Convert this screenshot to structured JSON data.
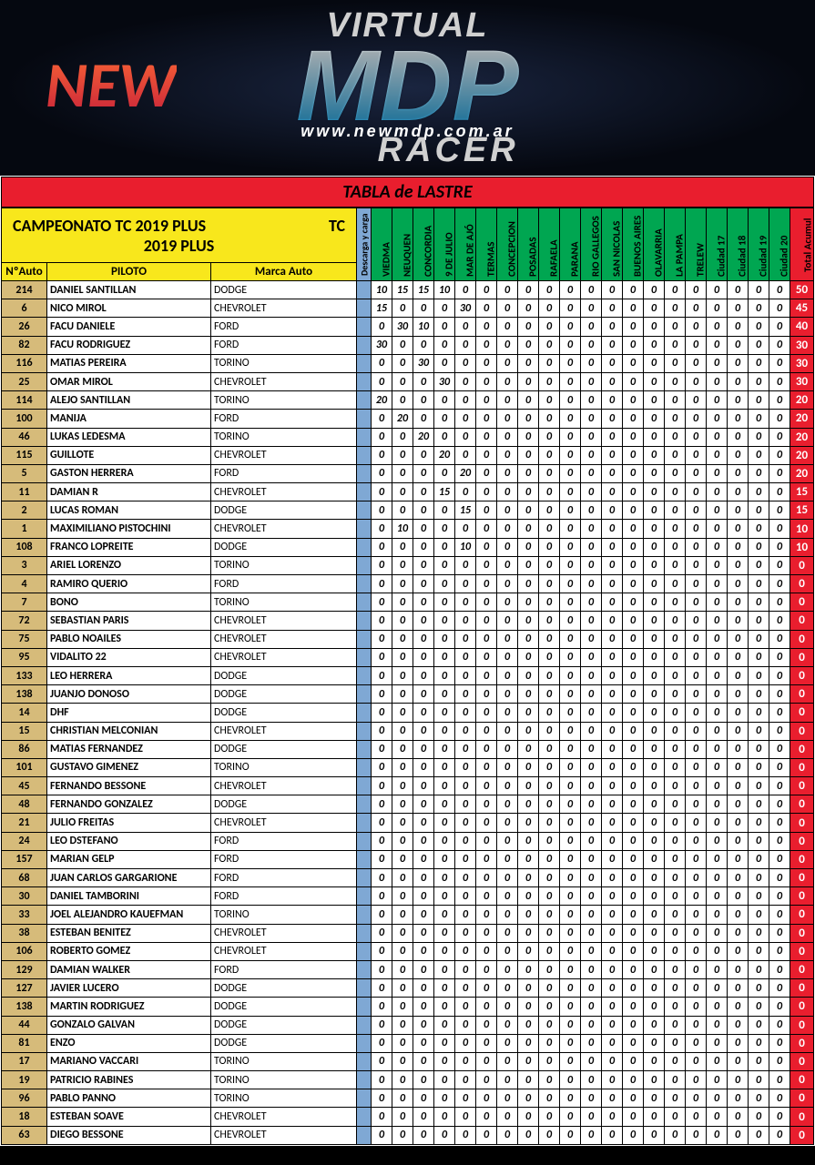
{
  "banner": {
    "top": "VIRTUAL",
    "new": "NEW",
    "mid": "MDP",
    "url": "www.newmdp.com.ar",
    "bot": "RACER"
  },
  "title": "TABLA de LASTRE",
  "championship_line1": "CAMPEONATO TC 2019 PLUS",
  "championship_right": "TC",
  "championship_line2": "2019 PLUS",
  "headers": {
    "num": "NºAuto",
    "pilot": "PILOTO",
    "brand": "Marca Auto",
    "descarga": "Descarga y carga",
    "total": "Total Acumul"
  },
  "tracks": [
    "VIEDMA",
    "NEUQUEN",
    "CONCORDIA",
    "9 DE JULIO",
    "MAR DE AJÓ",
    "TERMAS",
    "CONCEPCION",
    "POSADAS",
    "RAFAELA",
    "PARANA",
    "RIO GALLEGOS",
    "SAN NICOLAS",
    "BUENOS AIRES",
    "OLAVARRIA",
    "LA PAMPA",
    "TRELEW",
    "Ciudad 17",
    "Ciudad 18",
    "Ciudad 19",
    "Ciudad 20"
  ],
  "columns_widths": {
    "num": 50,
    "pilot": 180,
    "brand": 160,
    "descarga": 16,
    "track": 23,
    "total": 26
  },
  "colors": {
    "title_bg": "#e91e2e",
    "champ_bg": "#f8e71c",
    "track_bg": "#00a651",
    "descarga_bg": "#7fa8d4",
    "num_bg": "#d6bb7a",
    "total_bg": "#e91e2e",
    "total_fg": "#ffffff",
    "row_bg": "#ffffff",
    "border": "#000000"
  },
  "rows": [
    {
      "n": "214",
      "p": "DANIEL SANTILLAN",
      "b": "DODGE",
      "v": [
        10,
        15,
        15,
        10,
        0,
        0,
        0,
        0,
        0,
        0,
        0,
        0,
        0,
        0,
        0,
        0,
        0,
        0,
        0,
        0
      ],
      "t": 50
    },
    {
      "n": "6",
      "p": "NICO MIROL",
      "b": "CHEVROLET",
      "v": [
        15,
        0,
        0,
        0,
        30,
        0,
        0,
        0,
        0,
        0,
        0,
        0,
        0,
        0,
        0,
        0,
        0,
        0,
        0,
        0
      ],
      "t": 45
    },
    {
      "n": "26",
      "p": "FACU DANIELE",
      "b": "FORD",
      "v": [
        0,
        30,
        10,
        0,
        0,
        0,
        0,
        0,
        0,
        0,
        0,
        0,
        0,
        0,
        0,
        0,
        0,
        0,
        0,
        0
      ],
      "t": 40
    },
    {
      "n": "82",
      "p": "FACU RODRIGUEZ",
      "b": "FORD",
      "v": [
        30,
        0,
        0,
        0,
        0,
        0,
        0,
        0,
        0,
        0,
        0,
        0,
        0,
        0,
        0,
        0,
        0,
        0,
        0,
        0
      ],
      "t": 30
    },
    {
      "n": "116",
      "p": "MATIAS PEREIRA",
      "b": "TORINO",
      "v": [
        0,
        0,
        30,
        0,
        0,
        0,
        0,
        0,
        0,
        0,
        0,
        0,
        0,
        0,
        0,
        0,
        0,
        0,
        0,
        0
      ],
      "t": 30
    },
    {
      "n": "25",
      "p": "OMAR MIROL",
      "b": "CHEVROLET",
      "v": [
        0,
        0,
        0,
        30,
        0,
        0,
        0,
        0,
        0,
        0,
        0,
        0,
        0,
        0,
        0,
        0,
        0,
        0,
        0,
        0
      ],
      "t": 30
    },
    {
      "n": "114",
      "p": "ALEJO SANTILLAN",
      "b": "TORINO",
      "v": [
        20,
        0,
        0,
        0,
        0,
        0,
        0,
        0,
        0,
        0,
        0,
        0,
        0,
        0,
        0,
        0,
        0,
        0,
        0,
        0
      ],
      "t": 20
    },
    {
      "n": "100",
      "p": "MANIJA",
      "b": "FORD",
      "v": [
        0,
        20,
        0,
        0,
        0,
        0,
        0,
        0,
        0,
        0,
        0,
        0,
        0,
        0,
        0,
        0,
        0,
        0,
        0,
        0
      ],
      "t": 20
    },
    {
      "n": "46",
      "p": "LUKAS LEDESMA",
      "b": "TORINO",
      "v": [
        0,
        0,
        20,
        0,
        0,
        0,
        0,
        0,
        0,
        0,
        0,
        0,
        0,
        0,
        0,
        0,
        0,
        0,
        0,
        0
      ],
      "t": 20
    },
    {
      "n": "115",
      "p": "GUILLOTE",
      "b": "CHEVROLET",
      "v": [
        0,
        0,
        0,
        20,
        0,
        0,
        0,
        0,
        0,
        0,
        0,
        0,
        0,
        0,
        0,
        0,
        0,
        0,
        0,
        0
      ],
      "t": 20
    },
    {
      "n": "5",
      "p": "GASTON HERRERA",
      "b": "FORD",
      "v": [
        0,
        0,
        0,
        0,
        20,
        0,
        0,
        0,
        0,
        0,
        0,
        0,
        0,
        0,
        0,
        0,
        0,
        0,
        0,
        0
      ],
      "t": 20
    },
    {
      "n": "11",
      "p": "DAMIAN R",
      "b": "CHEVROLET",
      "v": [
        0,
        0,
        0,
        15,
        0,
        0,
        0,
        0,
        0,
        0,
        0,
        0,
        0,
        0,
        0,
        0,
        0,
        0,
        0,
        0
      ],
      "t": 15
    },
    {
      "n": "2",
      "p": "LUCAS ROMAN",
      "b": "DODGE",
      "v": [
        0,
        0,
        0,
        0,
        15,
        0,
        0,
        0,
        0,
        0,
        0,
        0,
        0,
        0,
        0,
        0,
        0,
        0,
        0,
        0
      ],
      "t": 15
    },
    {
      "n": "1",
      "p": "MAXIMILIANO PISTOCHINI",
      "b": "CHEVROLET",
      "v": [
        0,
        10,
        0,
        0,
        0,
        0,
        0,
        0,
        0,
        0,
        0,
        0,
        0,
        0,
        0,
        0,
        0,
        0,
        0,
        0
      ],
      "t": 10
    },
    {
      "n": "108",
      "p": "FRANCO LOPREITE",
      "b": "DODGE",
      "v": [
        0,
        0,
        0,
        0,
        10,
        0,
        0,
        0,
        0,
        0,
        0,
        0,
        0,
        0,
        0,
        0,
        0,
        0,
        0,
        0
      ],
      "t": 10
    },
    {
      "n": "3",
      "p": "ARIEL LORENZO",
      "b": "TORINO",
      "v": [
        0,
        0,
        0,
        0,
        0,
        0,
        0,
        0,
        0,
        0,
        0,
        0,
        0,
        0,
        0,
        0,
        0,
        0,
        0,
        0
      ],
      "t": 0
    },
    {
      "n": "4",
      "p": "RAMIRO QUERIO",
      "b": "FORD",
      "v": [
        0,
        0,
        0,
        0,
        0,
        0,
        0,
        0,
        0,
        0,
        0,
        0,
        0,
        0,
        0,
        0,
        0,
        0,
        0,
        0
      ],
      "t": 0
    },
    {
      "n": "7",
      "p": "BONO",
      "b": "TORINO",
      "v": [
        0,
        0,
        0,
        0,
        0,
        0,
        0,
        0,
        0,
        0,
        0,
        0,
        0,
        0,
        0,
        0,
        0,
        0,
        0,
        0
      ],
      "t": 0
    },
    {
      "n": "72",
      "p": "SEBASTIAN PARIS",
      "b": "CHEVROLET",
      "v": [
        0,
        0,
        0,
        0,
        0,
        0,
        0,
        0,
        0,
        0,
        0,
        0,
        0,
        0,
        0,
        0,
        0,
        0,
        0,
        0
      ],
      "t": 0
    },
    {
      "n": "75",
      "p": "PABLO NOAILES",
      "b": "CHEVROLET",
      "v": [
        0,
        0,
        0,
        0,
        0,
        0,
        0,
        0,
        0,
        0,
        0,
        0,
        0,
        0,
        0,
        0,
        0,
        0,
        0,
        0
      ],
      "t": 0
    },
    {
      "n": "95",
      "p": "VIDALITO 22",
      "b": "CHEVROLET",
      "v": [
        0,
        0,
        0,
        0,
        0,
        0,
        0,
        0,
        0,
        0,
        0,
        0,
        0,
        0,
        0,
        0,
        0,
        0,
        0,
        0
      ],
      "t": 0
    },
    {
      "n": "133",
      "p": "LEO HERRERA",
      "b": "DODGE",
      "v": [
        0,
        0,
        0,
        0,
        0,
        0,
        0,
        0,
        0,
        0,
        0,
        0,
        0,
        0,
        0,
        0,
        0,
        0,
        0,
        0
      ],
      "t": 0
    },
    {
      "n": "138",
      "p": "JUANJO DONOSO",
      "b": "DODGE",
      "v": [
        0,
        0,
        0,
        0,
        0,
        0,
        0,
        0,
        0,
        0,
        0,
        0,
        0,
        0,
        0,
        0,
        0,
        0,
        0,
        0
      ],
      "t": 0
    },
    {
      "n": "14",
      "p": "DHF",
      "b": "DODGE",
      "v": [
        0,
        0,
        0,
        0,
        0,
        0,
        0,
        0,
        0,
        0,
        0,
        0,
        0,
        0,
        0,
        0,
        0,
        0,
        0,
        0
      ],
      "t": 0
    },
    {
      "n": "15",
      "p": "CHRISTIAN MELCONIAN",
      "b": "CHEVROLET",
      "v": [
        0,
        0,
        0,
        0,
        0,
        0,
        0,
        0,
        0,
        0,
        0,
        0,
        0,
        0,
        0,
        0,
        0,
        0,
        0,
        0
      ],
      "t": 0
    },
    {
      "n": "86",
      "p": "MATIAS FERNANDEZ",
      "b": "DODGE",
      "v": [
        0,
        0,
        0,
        0,
        0,
        0,
        0,
        0,
        0,
        0,
        0,
        0,
        0,
        0,
        0,
        0,
        0,
        0,
        0,
        0
      ],
      "t": 0
    },
    {
      "n": "101",
      "p": "GUSTAVO GIMENEZ",
      "b": "TORINO",
      "v": [
        0,
        0,
        0,
        0,
        0,
        0,
        0,
        0,
        0,
        0,
        0,
        0,
        0,
        0,
        0,
        0,
        0,
        0,
        0,
        0
      ],
      "t": 0
    },
    {
      "n": "45",
      "p": "FERNANDO BESSONE",
      "b": "CHEVROLET",
      "v": [
        0,
        0,
        0,
        0,
        0,
        0,
        0,
        0,
        0,
        0,
        0,
        0,
        0,
        0,
        0,
        0,
        0,
        0,
        0,
        0
      ],
      "t": 0
    },
    {
      "n": "48",
      "p": "FERNANDO GONZALEZ",
      "b": "DODGE",
      "v": [
        0,
        0,
        0,
        0,
        0,
        0,
        0,
        0,
        0,
        0,
        0,
        0,
        0,
        0,
        0,
        0,
        0,
        0,
        0,
        0
      ],
      "t": 0
    },
    {
      "n": "21",
      "p": "JULIO FREITAS",
      "b": "CHEVROLET",
      "v": [
        0,
        0,
        0,
        0,
        0,
        0,
        0,
        0,
        0,
        0,
        0,
        0,
        0,
        0,
        0,
        0,
        0,
        0,
        0,
        0
      ],
      "t": 0
    },
    {
      "n": "24",
      "p": "LEO DSTEFANO",
      "b": "FORD",
      "v": [
        0,
        0,
        0,
        0,
        0,
        0,
        0,
        0,
        0,
        0,
        0,
        0,
        0,
        0,
        0,
        0,
        0,
        0,
        0,
        0
      ],
      "t": 0
    },
    {
      "n": "157",
      "p": "MARIAN GELP",
      "b": "FORD",
      "v": [
        0,
        0,
        0,
        0,
        0,
        0,
        0,
        0,
        0,
        0,
        0,
        0,
        0,
        0,
        0,
        0,
        0,
        0,
        0,
        0
      ],
      "t": 0
    },
    {
      "n": "68",
      "p": "JUAN CARLOS GARGARIONE",
      "b": "FORD",
      "v": [
        0,
        0,
        0,
        0,
        0,
        0,
        0,
        0,
        0,
        0,
        0,
        0,
        0,
        0,
        0,
        0,
        0,
        0,
        0,
        0
      ],
      "t": 0
    },
    {
      "n": "30",
      "p": "DANIEL TAMBORINI",
      "b": "FORD",
      "v": [
        0,
        0,
        0,
        0,
        0,
        0,
        0,
        0,
        0,
        0,
        0,
        0,
        0,
        0,
        0,
        0,
        0,
        0,
        0,
        0
      ],
      "t": 0
    },
    {
      "n": "33",
      "p": "JOEL ALEJANDRO KAUEFMAN",
      "b": "TORINO",
      "v": [
        0,
        0,
        0,
        0,
        0,
        0,
        0,
        0,
        0,
        0,
        0,
        0,
        0,
        0,
        0,
        0,
        0,
        0,
        0,
        0
      ],
      "t": 0
    },
    {
      "n": "38",
      "p": "ESTEBAN BENITEZ",
      "b": "CHEVROLET",
      "v": [
        0,
        0,
        0,
        0,
        0,
        0,
        0,
        0,
        0,
        0,
        0,
        0,
        0,
        0,
        0,
        0,
        0,
        0,
        0,
        0
      ],
      "t": 0
    },
    {
      "n": "106",
      "p": "ROBERTO GOMEZ",
      "b": "CHEVROLET",
      "v": [
        0,
        0,
        0,
        0,
        0,
        0,
        0,
        0,
        0,
        0,
        0,
        0,
        0,
        0,
        0,
        0,
        0,
        0,
        0,
        0
      ],
      "t": 0
    },
    {
      "n": "129",
      "p": "DAMIAN WALKER",
      "b": "FORD",
      "v": [
        0,
        0,
        0,
        0,
        0,
        0,
        0,
        0,
        0,
        0,
        0,
        0,
        0,
        0,
        0,
        0,
        0,
        0,
        0,
        0
      ],
      "t": 0
    },
    {
      "n": "127",
      "p": "JAVIER LUCERO",
      "b": "DODGE",
      "v": [
        0,
        0,
        0,
        0,
        0,
        0,
        0,
        0,
        0,
        0,
        0,
        0,
        0,
        0,
        0,
        0,
        0,
        0,
        0,
        0
      ],
      "t": 0
    },
    {
      "n": "138",
      "p": "MARTIN RODRIGUEZ",
      "b": "DODGE",
      "v": [
        0,
        0,
        0,
        0,
        0,
        0,
        0,
        0,
        0,
        0,
        0,
        0,
        0,
        0,
        0,
        0,
        0,
        0,
        0,
        0
      ],
      "t": 0
    },
    {
      "n": "44",
      "p": "GONZALO GALVAN",
      "b": "DODGE",
      "v": [
        0,
        0,
        0,
        0,
        0,
        0,
        0,
        0,
        0,
        0,
        0,
        0,
        0,
        0,
        0,
        0,
        0,
        0,
        0,
        0
      ],
      "t": 0
    },
    {
      "n": "81",
      "p": "ENZO",
      "b": "DODGE",
      "v": [
        0,
        0,
        0,
        0,
        0,
        0,
        0,
        0,
        0,
        0,
        0,
        0,
        0,
        0,
        0,
        0,
        0,
        0,
        0,
        0
      ],
      "t": 0
    },
    {
      "n": "17",
      "p": "MARIANO VACCARI",
      "b": "TORINO",
      "v": [
        0,
        0,
        0,
        0,
        0,
        0,
        0,
        0,
        0,
        0,
        0,
        0,
        0,
        0,
        0,
        0,
        0,
        0,
        0,
        0
      ],
      "t": 0
    },
    {
      "n": "19",
      "p": "PATRICIO RABINES",
      "b": "TORINO",
      "v": [
        0,
        0,
        0,
        0,
        0,
        0,
        0,
        0,
        0,
        0,
        0,
        0,
        0,
        0,
        0,
        0,
        0,
        0,
        0,
        0
      ],
      "t": 0
    },
    {
      "n": "96",
      "p": "PABLO PANNO",
      "b": "TORINO",
      "v": [
        0,
        0,
        0,
        0,
        0,
        0,
        0,
        0,
        0,
        0,
        0,
        0,
        0,
        0,
        0,
        0,
        0,
        0,
        0,
        0
      ],
      "t": 0
    },
    {
      "n": "18",
      "p": "ESTEBAN SOAVE",
      "b": "CHEVROLET",
      "v": [
        0,
        0,
        0,
        0,
        0,
        0,
        0,
        0,
        0,
        0,
        0,
        0,
        0,
        0,
        0,
        0,
        0,
        0,
        0,
        0
      ],
      "t": 0
    },
    {
      "n": "63",
      "p": "DIEGO BESSONE",
      "b": "CHEVROLET",
      "v": [
        0,
        0,
        0,
        0,
        0,
        0,
        0,
        0,
        0,
        0,
        0,
        0,
        0,
        0,
        0,
        0,
        0,
        0,
        0,
        0
      ],
      "t": 0
    }
  ]
}
